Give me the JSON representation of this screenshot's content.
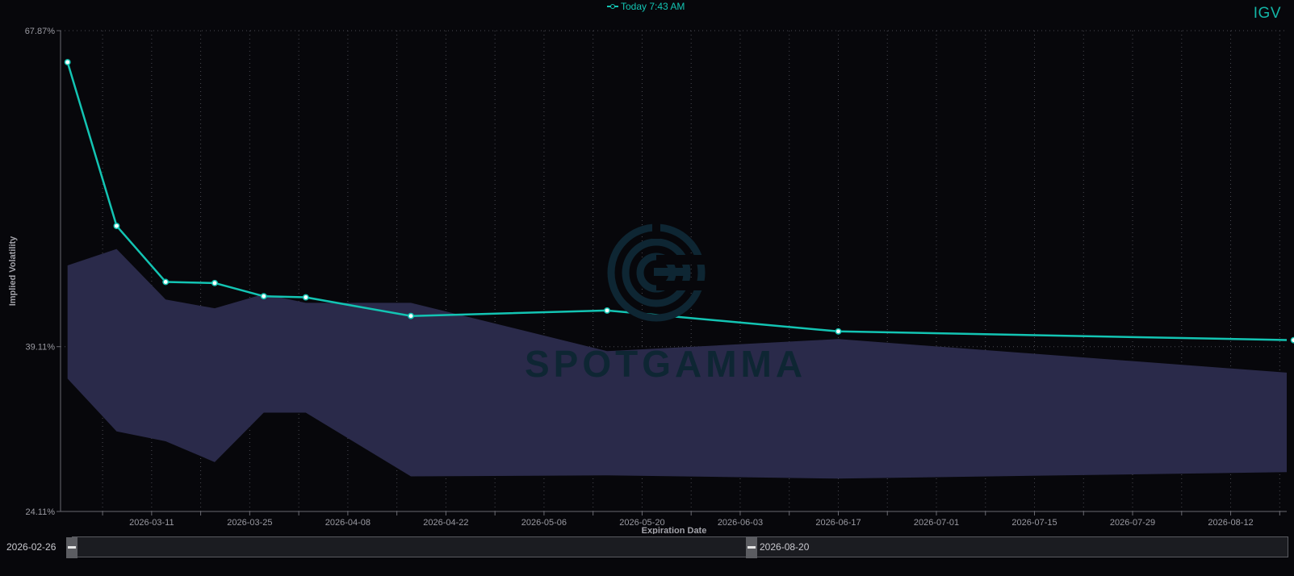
{
  "symbol": "IGV",
  "legend": {
    "label": "Today 7:43 AM"
  },
  "watermark": {
    "text": "SPOTGAMMA"
  },
  "range_selector": {
    "start": "2026-02-26",
    "end": "2026-08-20"
  },
  "colors": {
    "line": "#13c4b3",
    "band": "#2a2a4a",
    "background": "#07070b",
    "grid": "#4a4a52"
  },
  "chart_data": {
    "type": "line",
    "title": "",
    "xlabel": "Expiration Date",
    "ylabel": "Implied Volatility",
    "x_domain": [
      "2026-02-26",
      "2026-08-20"
    ],
    "ylim": [
      24.11,
      67.87
    ],
    "y_ticks": [
      "24.11%",
      "39.11%",
      "67.87%"
    ],
    "x_ticks": [
      "2026-03-11",
      "2026-03-25",
      "2026-04-08",
      "2026-04-22",
      "2026-05-06",
      "2026-05-20",
      "2026-06-03",
      "2026-06-17",
      "2026-07-01",
      "2026-07-15",
      "2026-07-29",
      "2026-08-12"
    ],
    "grid": true,
    "series": [
      {
        "name": "Today 7:43 AM",
        "x": [
          "2026-02-27",
          "2026-03-06",
          "2026-03-13",
          "2026-03-20",
          "2026-03-27",
          "2026-04-02",
          "2026-04-17",
          "2026-05-15",
          "2026-06-17",
          "2026-08-21"
        ],
        "values": [
          65.0,
          50.1,
          45.0,
          44.9,
          43.7,
          43.6,
          41.9,
          42.4,
          40.5,
          39.7
        ]
      }
    ],
    "band": {
      "x": [
        "2026-02-27",
        "2026-03-06",
        "2026-03-13",
        "2026-03-20",
        "2026-03-27",
        "2026-04-02",
        "2026-04-17",
        "2026-05-15",
        "2026-06-17",
        "2026-08-21"
      ],
      "upper": [
        46.5,
        48.0,
        43.4,
        42.6,
        43.9,
        43.1,
        43.1,
        38.7,
        39.8,
        36.7
      ],
      "lower": [
        36.2,
        31.4,
        30.5,
        28.6,
        33.1,
        33.1,
        27.3,
        27.4,
        27.1,
        27.7
      ]
    }
  }
}
